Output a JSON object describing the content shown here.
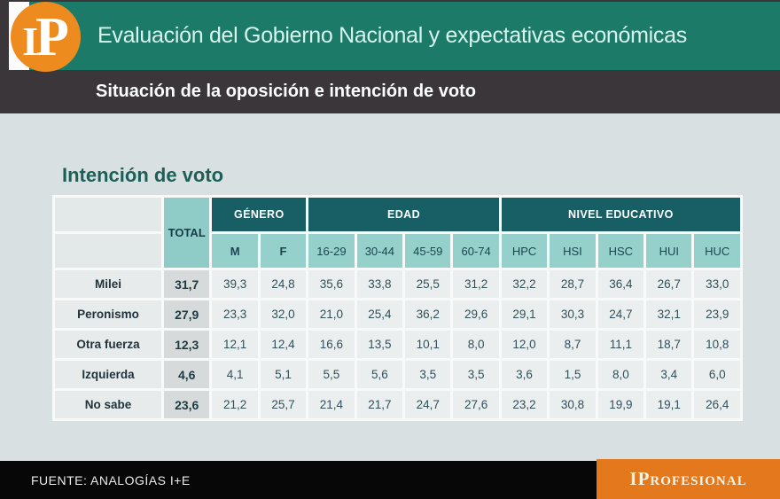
{
  "header": {
    "logo_i": "I",
    "logo_p": "P",
    "title": "Evaluación del Gobierno Nacional y expectativas económicas",
    "subtitle": "Situación de la oposición e intención de voto"
  },
  "main": {
    "section_title": "Intención de voto"
  },
  "chart_data": {
    "type": "table",
    "title": "Intención de voto",
    "total_label": "TOTAL",
    "groups": [
      {
        "label": "GÉNERO",
        "cols": [
          "M",
          "F"
        ]
      },
      {
        "label": "EDAD",
        "cols": [
          "16-29",
          "30-44",
          "45-59",
          "60-74"
        ]
      },
      {
        "label": "NIVEL EDUCATIVO",
        "cols": [
          "HPC",
          "HSI",
          "HSC",
          "HUI",
          "HUC"
        ]
      }
    ],
    "columns": [
      "TOTAL",
      "M",
      "F",
      "16-29",
      "30-44",
      "45-59",
      "60-74",
      "HPC",
      "HSI",
      "HSC",
      "HUI",
      "HUC"
    ],
    "rows": [
      {
        "label": "Milei",
        "total": "31,7",
        "values": [
          "39,3",
          "24,8",
          "35,6",
          "33,8",
          "25,5",
          "31,2",
          "32,2",
          "28,7",
          "36,4",
          "26,7",
          "33,0"
        ]
      },
      {
        "label": "Peronismo",
        "total": "27,9",
        "values": [
          "23,3",
          "32,0",
          "21,0",
          "25,4",
          "36,2",
          "29,6",
          "29,1",
          "30,3",
          "24,7",
          "32,1",
          "23,9"
        ]
      },
      {
        "label": "Otra fuerza",
        "total": "12,3",
        "values": [
          "12,1",
          "12,4",
          "16,6",
          "13,5",
          "10,1",
          "8,0",
          "12,0",
          "8,7",
          "11,1",
          "18,7",
          "10,8"
        ]
      },
      {
        "label": "Izquierda",
        "total": "4,6",
        "values": [
          "4,1",
          "5,1",
          "5,5",
          "5,6",
          "3,5",
          "3,5",
          "3,6",
          "1,5",
          "8,0",
          "3,4",
          "6,0"
        ]
      },
      {
        "label": "No sabe",
        "total": "23,6",
        "values": [
          "21,2",
          "25,7",
          "21,4",
          "21,7",
          "24,7",
          "27,6",
          "23,2",
          "30,8",
          "19,9",
          "19,1",
          "26,4"
        ]
      }
    ]
  },
  "footer": {
    "source": "FUENTE: ANALOGÍAS I+E",
    "brand": "IProfesional"
  },
  "colors": {
    "banner_teal": "#1c7b68",
    "bar_dark": "#3a3639",
    "logo_orange": "#ee8b1f",
    "brand_orange": "#e4781c",
    "header_dark_teal": "#175f64",
    "subheader_teal": "#95d0cb",
    "total_teal": "#8fccc7",
    "main_bg": "#d9e0e1",
    "footer_black": "#070707",
    "title_teal": "#1d5f58"
  }
}
